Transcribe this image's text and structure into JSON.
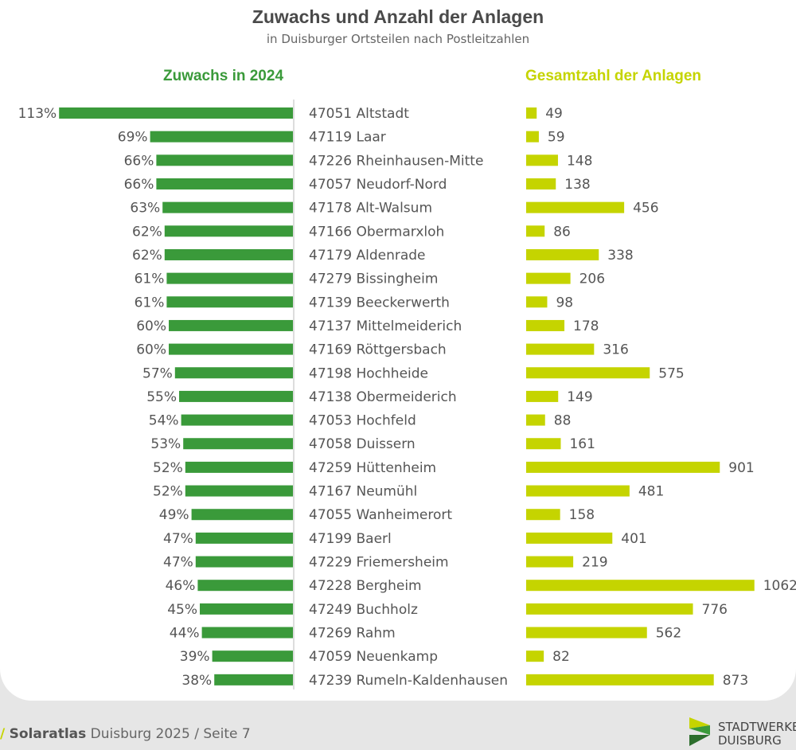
{
  "chart_data": {
    "type": "bar",
    "title": "Zuwachs und Anzahl der Anlagen",
    "subtitle": "in Duisburger Ortsteilen nach Postleitzahlen",
    "categories": [
      "47051 Altstadt",
      "47119 Laar",
      "47226 Rheinhausen-Mitte",
      "47057 Neudorf-Nord",
      "47178 Alt-Walsum",
      "47166 Obermarxloh",
      "47179 Aldenrade",
      "47279 Bissingheim",
      "47139 Beeckerwerth",
      "47137 Mittelmeiderich",
      "47169 Röttgersbach",
      "47198 Hochheide",
      "47138 Obermeiderich",
      "47053 Hochfeld",
      "47058 Duissern",
      "47259 Hüttenheim",
      "47167 Neumühl",
      "47055 Wanheimerort",
      "47199 Baerl",
      "47229 Friemersheim",
      "47228 Bergheim",
      "47249 Buchholz",
      "47269 Rahm",
      "47059 Neuenkamp",
      "47239 Rumeln-Kaldenhausen"
    ],
    "series": [
      {
        "name": "Zuwachs in 2024",
        "color": "#3a9a3a",
        "values": [
          113,
          69,
          66,
          66,
          63,
          62,
          62,
          61,
          61,
          60,
          60,
          57,
          55,
          54,
          53,
          52,
          52,
          49,
          47,
          47,
          46,
          45,
          44,
          39,
          38
        ],
        "labels": [
          "113%",
          "69%",
          "66%",
          "66%",
          "63%",
          "62%",
          "62%",
          "61%",
          "61%",
          "60%",
          "60%",
          "57%",
          "55%",
          "54%",
          "53%",
          "52%",
          "52%",
          "49%",
          "47%",
          "47%",
          "46%",
          "45%",
          "44%",
          "39%",
          "38%"
        ]
      },
      {
        "name": "Gesamtzahl der Anlagen",
        "color": "#c5d400",
        "values": [
          49,
          59,
          148,
          138,
          456,
          86,
          338,
          206,
          98,
          178,
          316,
          575,
          149,
          88,
          161,
          901,
          481,
          158,
          401,
          219,
          1062,
          776,
          562,
          82,
          873
        ],
        "labels": [
          "49",
          "59",
          "148",
          "138",
          "456",
          "86",
          "338",
          "206",
          "98",
          "178",
          "316",
          "575",
          "149",
          "88",
          "161",
          "901",
          "481",
          "158",
          "401",
          "219",
          "1062",
          "776",
          "562",
          "82",
          "873"
        ]
      }
    ]
  },
  "footer": {
    "brand": "Solaratlas",
    "text": "Duisburg 2025 / Seite 7"
  },
  "logo": {
    "line1": "STADTWERKE",
    "line2": "DUISBURG"
  }
}
